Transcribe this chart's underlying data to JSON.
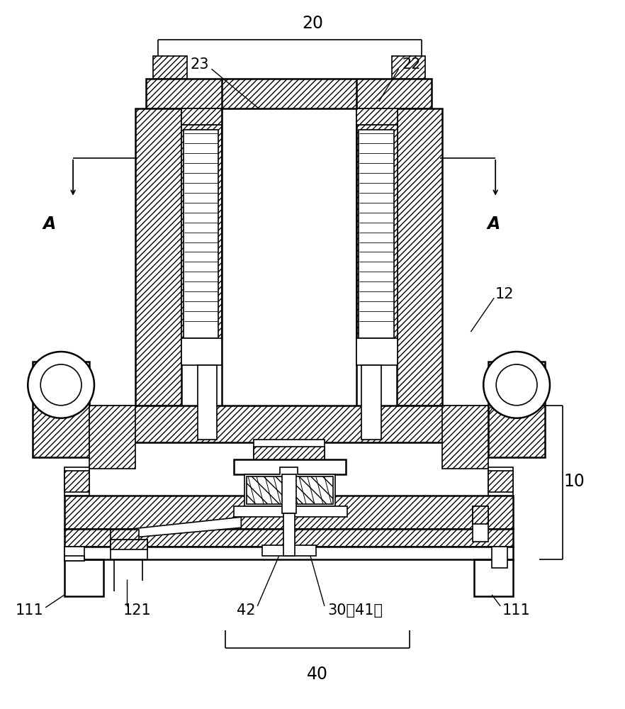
{
  "bg_color": "#ffffff",
  "line_color": "#000000",
  "figsize": [
    8.82,
    10.0
  ],
  "dpi": 100
}
